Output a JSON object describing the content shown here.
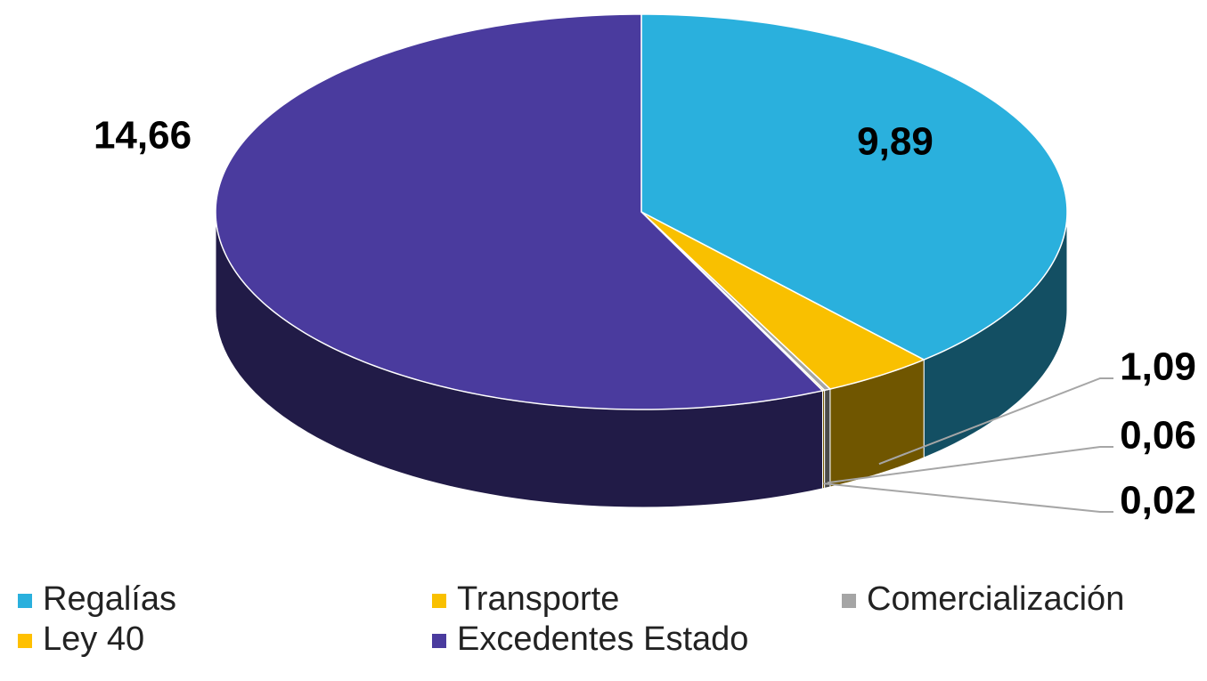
{
  "chart_data": {
    "type": "pie3d",
    "categories": [
      "Regalías",
      "Transporte",
      "Comercialización",
      "Ley 40",
      "Excedentes Estado"
    ],
    "values": [
      9.89,
      1.09,
      0.06,
      0.02,
      14.66
    ],
    "value_labels": [
      "9,89",
      "1,09",
      "0,06",
      "0,02",
      "14,66"
    ],
    "colors": [
      "#2ab0dd",
      "#f9c000",
      "#a5a5a5",
      "#ffc000",
      "#4a3b9e"
    ],
    "legend": "bottom"
  }
}
